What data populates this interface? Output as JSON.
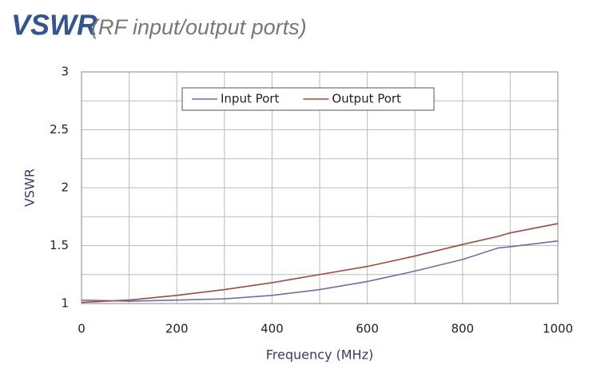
{
  "chart_data": {
    "type": "line",
    "title": "VSWR",
    "subtitle": "(RF input/output ports)",
    "x_label": "Frequency (MHz)",
    "y_label": "VSWR",
    "x": [
      0,
      100,
      200,
      300,
      400,
      500,
      600,
      700,
      800,
      875,
      900,
      1000
    ],
    "series": [
      {
        "name": "Input Port",
        "color": "#6e6ea8",
        "values": [
          1.03,
          1.02,
          1.03,
          1.04,
          1.07,
          1.12,
          1.19,
          1.28,
          1.38,
          1.48,
          1.49,
          1.54
        ]
      },
      {
        "name": "Output Port",
        "color": "#a04a42",
        "values": [
          1.01,
          1.03,
          1.07,
          1.12,
          1.18,
          1.25,
          1.32,
          1.41,
          1.51,
          1.58,
          1.61,
          1.69
        ]
      }
    ],
    "xlim": [
      0,
      1000
    ],
    "xticks": [
      0,
      200,
      400,
      600,
      800,
      1000
    ],
    "xminor": [
      100,
      300,
      500,
      700,
      900
    ],
    "ylim": [
      1,
      3
    ],
    "yticks": [
      1,
      1.5,
      2,
      2.5,
      3
    ],
    "yminor": [
      1.25,
      1.75,
      2.25,
      2.75
    ],
    "grid": true,
    "legend": "top"
  }
}
